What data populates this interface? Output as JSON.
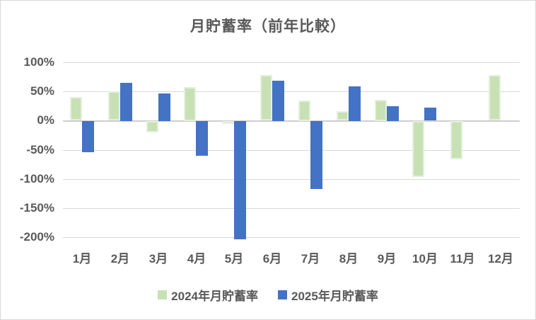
{
  "chart_data": {
    "type": "bar",
    "title": "月貯蓄率（前年比較）",
    "categories": [
      "1月",
      "2月",
      "3月",
      "4月",
      "5月",
      "6月",
      "7月",
      "8月",
      "9月",
      "10月",
      "11月",
      "12月"
    ],
    "series": [
      {
        "name": "2024年月貯蓄率",
        "color": "#c7e1b5",
        "border_color": "#e4f0dc",
        "values": [
          40,
          50,
          -19,
          58,
          -2,
          78,
          35,
          16,
          36,
          -96,
          -65,
          78
        ]
      },
      {
        "name": "2025年月貯蓄率",
        "color": "#4472c4",
        "border_color": null,
        "values": [
          -53,
          65,
          47,
          -59,
          -203,
          69,
          -116,
          59,
          25,
          22,
          null,
          null
        ]
      }
    ],
    "y_axis": {
      "min": -200,
      "max": 100,
      "step": 50,
      "tick_labels": [
        "100%",
        "50%",
        "0%",
        "-50%",
        "-100%",
        "-150%",
        "-200%"
      ],
      "format": "percent"
    },
    "x_axis_label": "",
    "y_axis_label": "",
    "grid": true,
    "legend_position": "bottom",
    "colors": {
      "title_text": "#595959",
      "axis_text": "#595959",
      "gridline": "#d9d9d9",
      "zero_line": "#cfcfcf",
      "background": "#ffffff",
      "chart_border": "#d9d9d9"
    }
  }
}
